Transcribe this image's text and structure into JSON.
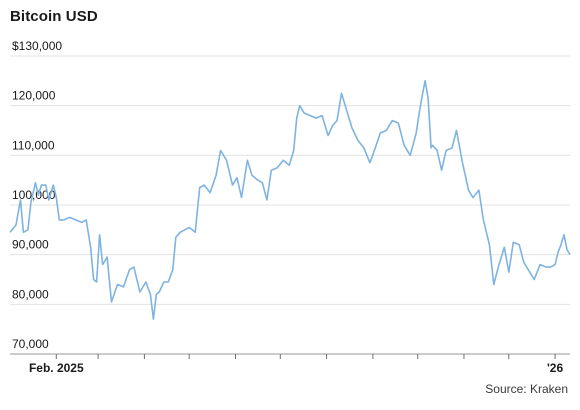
{
  "title": "Bitcoin USD",
  "source": "Source: Kraken",
  "chart_data": {
    "type": "line",
    "title": "Bitcoin USD",
    "xlabel": "",
    "ylabel": "",
    "ylim": [
      70000,
      130000
    ],
    "xlim": [
      "2025-01-01",
      "2026-01-11"
    ],
    "y_ticks": [
      {
        "value": 130000,
        "label": "$130,000"
      },
      {
        "value": 120000,
        "label": "120,000"
      },
      {
        "value": 110000,
        "label": "110,000"
      },
      {
        "value": 100000,
        "label": "100,000"
      },
      {
        "value": 90000,
        "label": "90,000"
      },
      {
        "value": 80000,
        "label": "80,000"
      },
      {
        "value": 70000,
        "label": "70,000"
      }
    ],
    "x_ticks": [
      {
        "date": "2025-02-01",
        "label": "Feb. 2025"
      },
      {
        "date": "2025-03-01",
        "label": ""
      },
      {
        "date": "2025-04-01",
        "label": ""
      },
      {
        "date": "2025-05-01",
        "label": ""
      },
      {
        "date": "2025-06-01",
        "label": ""
      },
      {
        "date": "2025-07-01",
        "label": ""
      },
      {
        "date": "2025-08-01",
        "label": ""
      },
      {
        "date": "2025-09-01",
        "label": ""
      },
      {
        "date": "2025-10-01",
        "label": ""
      },
      {
        "date": "2025-11-01",
        "label": ""
      },
      {
        "date": "2025-12-01",
        "label": ""
      },
      {
        "date": "2026-01-01",
        "label": "'26"
      }
    ],
    "grid": true,
    "line_color": "#7fb3e0",
    "series": [
      {
        "x": [
          "2025-01-01",
          "2025-01-05",
          "2025-01-08",
          "2025-01-10",
          "2025-01-13",
          "2025-01-15",
          "2025-01-18",
          "2025-01-20",
          "2025-01-22",
          "2025-01-25",
          "2025-01-27",
          "2025-01-30",
          "2025-02-01",
          "2025-02-03",
          "2025-02-06",
          "2025-02-10",
          "2025-02-14",
          "2025-02-18",
          "2025-02-21",
          "2025-02-24",
          "2025-02-26",
          "2025-02-28",
          "2025-03-02",
          "2025-03-04",
          "2025-03-07",
          "2025-03-10",
          "2025-03-14",
          "2025-03-18",
          "2025-03-22",
          "2025-03-25",
          "2025-03-29",
          "2025-04-02",
          "2025-04-05",
          "2025-04-07",
          "2025-04-09",
          "2025-04-11",
          "2025-04-14",
          "2025-04-17",
          "2025-04-20",
          "2025-04-22",
          "2025-04-25",
          "2025-04-28",
          "2025-05-01",
          "2025-05-05",
          "2025-05-08",
          "2025-05-11",
          "2025-05-15",
          "2025-05-19",
          "2025-05-22",
          "2025-05-26",
          "2025-05-30",
          "2025-06-02",
          "2025-06-05",
          "2025-06-09",
          "2025-06-12",
          "2025-06-16",
          "2025-06-19",
          "2025-06-22",
          "2025-06-25",
          "2025-06-29",
          "2025-07-03",
          "2025-07-07",
          "2025-07-10",
          "2025-07-12",
          "2025-07-14",
          "2025-07-17",
          "2025-07-21",
          "2025-07-25",
          "2025-07-29",
          "2025-08-02",
          "2025-08-05",
          "2025-08-08",
          "2025-08-11",
          "2025-08-14",
          "2025-08-18",
          "2025-08-22",
          "2025-08-26",
          "2025-08-30",
          "2025-09-02",
          "2025-09-06",
          "2025-09-10",
          "2025-09-14",
          "2025-09-18",
          "2025-09-22",
          "2025-09-26",
          "2025-09-30",
          "2025-10-02",
          "2025-10-04",
          "2025-10-06",
          "2025-10-08",
          "2025-10-10",
          "2025-10-11",
          "2025-10-14",
          "2025-10-17",
          "2025-10-20",
          "2025-10-24",
          "2025-10-27",
          "2025-10-31",
          "2025-11-04",
          "2025-11-07",
          "2025-11-11",
          "2025-11-14",
          "2025-11-18",
          "2025-11-21",
          "2025-11-24",
          "2025-11-28",
          "2025-12-01",
          "2025-12-04",
          "2025-12-08",
          "2025-12-11",
          "2025-12-15",
          "2025-12-18",
          "2025-12-22",
          "2025-12-26",
          "2025-12-29",
          "2026-01-01",
          "2026-01-03",
          "2026-01-05",
          "2026-01-07",
          "2026-01-09",
          "2026-01-11"
        ],
        "y": [
          94500,
          96000,
          101000,
          94500,
          95000,
          100500,
          104500,
          102000,
          104000,
          104000,
          101000,
          104000,
          101500,
          97000,
          97000,
          97500,
          97000,
          96500,
          97000,
          91500,
          85000,
          84500,
          94000,
          88000,
          89500,
          80500,
          84000,
          83500,
          87000,
          87500,
          82500,
          84500,
          82000,
          77000,
          82000,
          82500,
          84500,
          84500,
          87000,
          93500,
          94500,
          95000,
          95500,
          94500,
          103500,
          104000,
          102500,
          106000,
          111000,
          109000,
          104000,
          105500,
          101500,
          109000,
          106000,
          105000,
          104500,
          101000,
          107000,
          107500,
          109000,
          108000,
          111000,
          117500,
          120000,
          118500,
          118000,
          117500,
          118000,
          114000,
          116000,
          117000,
          122500,
          119500,
          115500,
          113000,
          111500,
          108500,
          111000,
          114500,
          115000,
          117000,
          116500,
          112000,
          110000,
          114500,
          118500,
          122000,
          125000,
          121500,
          111500,
          112000,
          111000,
          107000,
          111000,
          111500,
          115000,
          108500,
          103000,
          101500,
          103000,
          97000,
          92000,
          84000,
          87500,
          91500,
          86500,
          92500,
          92000,
          88500,
          86500,
          85000,
          88000,
          87500,
          87500,
          88000,
          90500,
          92000,
          94000,
          91000,
          90000
        ]
      }
    ]
  }
}
